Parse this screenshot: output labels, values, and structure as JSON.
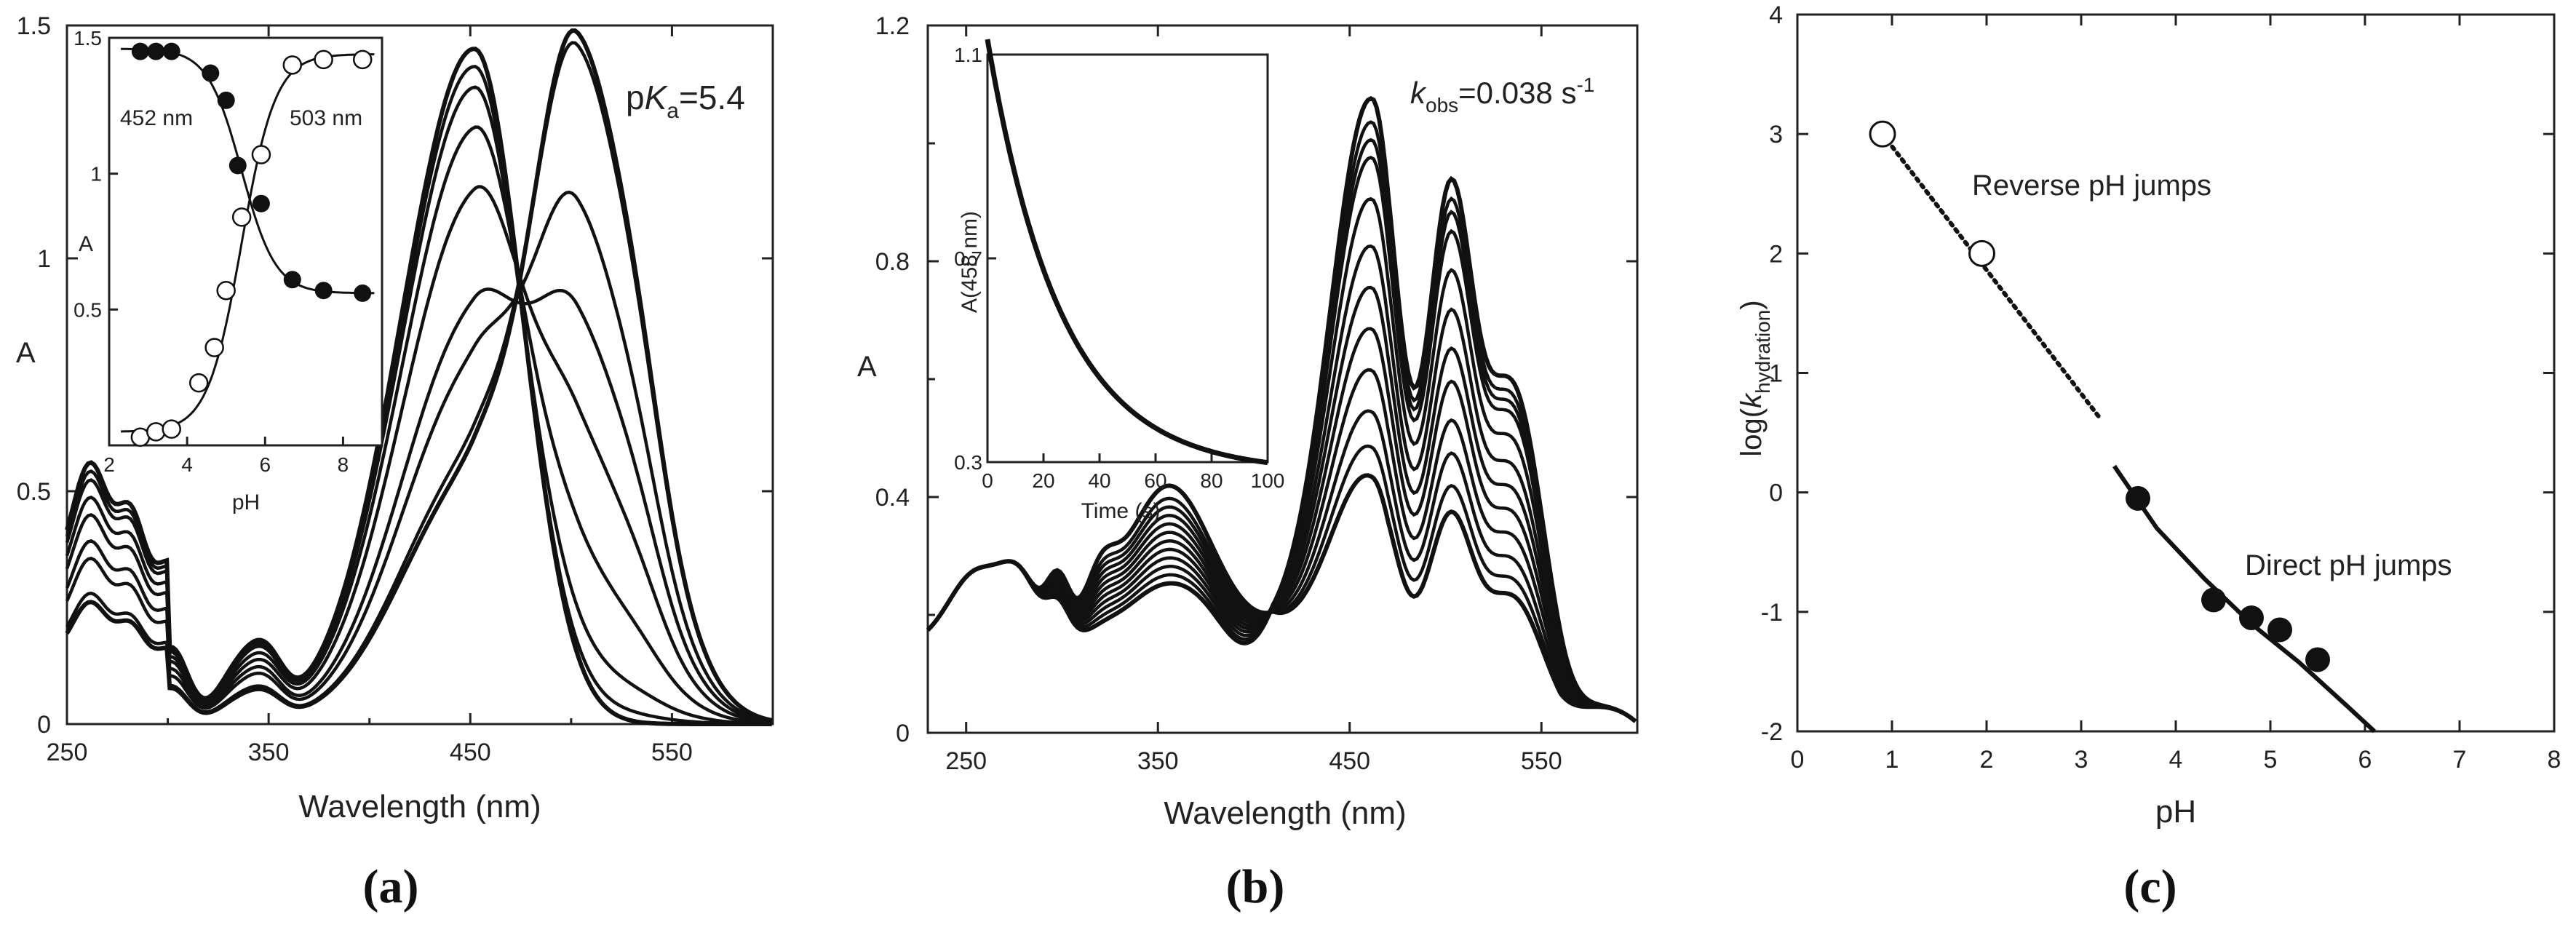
{
  "chart_data": [
    {
      "panel": "(a)",
      "type": "line",
      "title": "",
      "xlabel": "Wavelength (nm)",
      "ylabel": "A",
      "xlim": [
        250,
        600
      ],
      "ylim": [
        0,
        1.5
      ],
      "xticks": [
        250,
        350,
        450,
        550
      ],
      "yticks": [
        0,
        0.5,
        1,
        1.5
      ],
      "ytick_labels": [
        "0",
        "0.5",
        "1",
        "1.5"
      ],
      "annotation": {
        "prefix": "p",
        "k": "K",
        "sub": "a",
        "value": "=5.4"
      },
      "series_note": "spectra from acidic (452 nm band) to basic (503 nm band); isosbestic point near 470 nm",
      "series": [
        {
          "name": "s1",
          "uv": [
            0.3,
            0.16,
            0.13
          ],
          "p452": 1.45,
          "p503": 0.0
        },
        {
          "name": "s2",
          "uv": [
            0.29,
            0.155,
            0.125
          ],
          "p452": 1.41,
          "p503": 0.03
        },
        {
          "name": "s3",
          "uv": [
            0.28,
            0.15,
            0.12
          ],
          "p452": 1.36,
          "p503": 0.11
        },
        {
          "name": "s4",
          "uv": [
            0.26,
            0.14,
            0.11
          ],
          "p452": 1.26,
          "p503": 0.31
        },
        {
          "name": "s5",
          "uv": [
            0.24,
            0.13,
            0.1
          ],
          "p452": 1.11,
          "p503": 0.57
        },
        {
          "name": "s6",
          "uv": [
            0.21,
            0.115,
            0.09
          ],
          "p452": 0.86,
          "p503": 0.81
        },
        {
          "name": "s7",
          "uv": [
            0.19,
            0.1,
            0.08
          ],
          "p452": 0.74,
          "p503": 1.05
        },
        {
          "name": "s8",
          "uv": [
            0.15,
            0.08,
            0.06
          ],
          "p452": 0.55,
          "p503": 1.4
        },
        {
          "name": "s9",
          "uv": [
            0.14,
            0.075,
            0.055
          ],
          "p452": 0.52,
          "p503": 1.43
        }
      ],
      "inset": {
        "type": "scatter",
        "xlabel": "pH",
        "ylabel": "A",
        "xlim": [
          2,
          9
        ],
        "ylim": [
          0,
          1.5
        ],
        "xticks": [
          2,
          4,
          6,
          8
        ],
        "yticks": [
          0.5,
          1,
          1.5
        ],
        "ytick_labels": [
          "0.5",
          "1",
          "1.5"
        ],
        "series": [
          {
            "name": "452 nm",
            "marker": "filled",
            "x": [
              2.8,
              3.2,
              3.6,
              4.6,
              5.0,
              5.3,
              5.9,
              6.7,
              7.5,
              8.5
            ],
            "y": [
              1.45,
              1.45,
              1.45,
              1.37,
              1.27,
              1.03,
              0.89,
              0.61,
              0.57,
              0.56
            ]
          },
          {
            "name": "503 nm",
            "marker": "open",
            "x": [
              2.8,
              3.2,
              3.6,
              4.3,
              4.7,
              5.0,
              5.4,
              5.9,
              6.7,
              7.5,
              8.5
            ],
            "y": [
              0.03,
              0.05,
              0.06,
              0.23,
              0.36,
              0.57,
              0.84,
              1.07,
              1.4,
              1.42,
              1.42
            ]
          }
        ],
        "fits": [
          {
            "name": "452 nm fit",
            "low": 0.56,
            "high": 1.46
          },
          {
            "name": "503 nm fit",
            "low": 0.05,
            "high": 1.44
          }
        ],
        "pKa": 5.4,
        "labels": [
          "452 nm",
          "503 nm"
        ]
      }
    },
    {
      "panel": "(b)",
      "type": "line",
      "title": "",
      "xlabel": "Wavelength (nm)",
      "ylabel": "A",
      "xlim": [
        230,
        600
      ],
      "ylim": [
        0,
        1.2
      ],
      "xticks": [
        250,
        350,
        450,
        550
      ],
      "yticks": [
        0,
        0.4,
        0.8,
        1.2
      ],
      "ytick_labels": [
        "0",
        "0.4",
        "0.8",
        "1.2"
      ],
      "annotation": {
        "k": "k",
        "sub": "obs",
        "value": "=0.038 s",
        "sup": "-1"
      },
      "series_note": "spectra over time; 462 nm band decays, 355 nm band grows; isosbestic point near 405 nm",
      "series": [
        {
          "name": "t1",
          "b355": 0.215,
          "p462": 1.05,
          "p500": 0.85
        },
        {
          "name": "t2",
          "b355": 0.225,
          "p462": 1.01,
          "p500": 0.82
        },
        {
          "name": "t3",
          "b355": 0.235,
          "p462": 0.98,
          "p500": 0.8
        },
        {
          "name": "t4",
          "b355": 0.245,
          "p462": 0.95,
          "p500": 0.77
        },
        {
          "name": "t5",
          "b355": 0.255,
          "p462": 0.88,
          "p500": 0.71
        },
        {
          "name": "t6",
          "b355": 0.265,
          "p462": 0.8,
          "p500": 0.65
        },
        {
          "name": "t7",
          "b355": 0.275,
          "p462": 0.73,
          "p500": 0.59
        },
        {
          "name": "t8",
          "b355": 0.285,
          "p462": 0.66,
          "p500": 0.54
        },
        {
          "name": "t9",
          "b355": 0.295,
          "p462": 0.59,
          "p500": 0.48
        },
        {
          "name": "t10",
          "b355": 0.305,
          "p462": 0.52,
          "p500": 0.43
        },
        {
          "name": "t11",
          "b355": 0.315,
          "p462": 0.46,
          "p500": 0.38
        },
        {
          "name": "t12",
          "b355": 0.33,
          "p462": 0.41,
          "p500": 0.34
        }
      ],
      "inset": {
        "type": "line",
        "xlabel": "Time (s)",
        "ylabel": "A(458 nm)",
        "xlim": [
          0,
          100
        ],
        "ylim": [
          0.3,
          1.1
        ],
        "xticks": [
          0,
          20,
          40,
          60,
          80,
          100
        ],
        "yticks": [
          0.3,
          0.7,
          1.1
        ],
        "ytick_labels": [
          "0.3",
          "0.7",
          "1.1"
        ],
        "decay": {
          "A0": 1.13,
          "Ainf": 0.28,
          "k": 0.038
        }
      }
    },
    {
      "panel": "(c)",
      "type": "scatter",
      "title": "",
      "xlabel": "pH",
      "ylabel": {
        "prefix": "log(",
        "k": "k",
        "sub": "hydration",
        "suffix": ")"
      },
      "xlim": [
        0,
        8
      ],
      "ylim": [
        -2,
        4
      ],
      "xticks": [
        0,
        1,
        2,
        3,
        4,
        5,
        6,
        7,
        8
      ],
      "yticks": [
        -2,
        -1,
        0,
        1,
        2,
        3,
        4
      ],
      "series": [
        {
          "name": "Reverse pH jumps",
          "marker": "open",
          "x": [
            0.9,
            1.95
          ],
          "y": [
            3.0,
            2.0
          ]
        },
        {
          "name": "Direct pH jumps",
          "marker": "filled",
          "x": [
            3.6,
            4.4,
            4.8,
            5.1,
            5.5
          ],
          "y": [
            -0.05,
            -0.9,
            -1.05,
            -1.15,
            -1.4
          ]
        }
      ],
      "lines": [
        {
          "name": "reverse trend",
          "style": "dotted",
          "x": [
            0.9,
            3.2
          ],
          "y": [
            3.0,
            0.62
          ]
        },
        {
          "name": "direct fit",
          "style": "solid",
          "x": [
            3.35,
            3.8,
            4.3,
            4.8,
            5.3,
            5.8,
            6.1
          ],
          "y": [
            0.22,
            -0.3,
            -0.72,
            -1.1,
            -1.42,
            -1.78,
            -2.0
          ]
        }
      ],
      "annotations": [
        "Reverse pH jumps",
        "Direct pH jumps"
      ]
    }
  ],
  "panel_labels": [
    "(a)",
    "(b)",
    "(c)"
  ]
}
